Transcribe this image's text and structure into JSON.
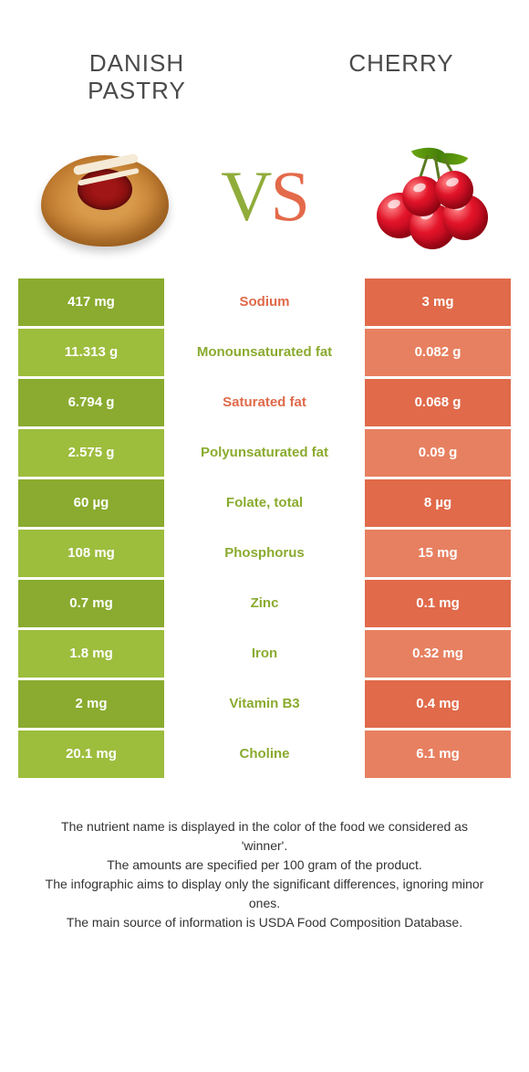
{
  "colors": {
    "green_dark": "#8aab2f",
    "green_light": "#9dbd3d",
    "orange_dark": "#e06a4a",
    "orange_light": "#e78060",
    "text_green": "#8aab2f",
    "text_orange": "#e06a4a"
  },
  "header": {
    "left_title": "DANISH PASTRY",
    "right_title": "CHERRY"
  },
  "vs": {
    "v": "V",
    "s": "S"
  },
  "rows": [
    {
      "left": "417 mg",
      "label": "Sodium",
      "right": "3 mg",
      "winner": "orange"
    },
    {
      "left": "11.313 g",
      "label": "Monounsaturated fat",
      "right": "0.082 g",
      "winner": "green"
    },
    {
      "left": "6.794 g",
      "label": "Saturated fat",
      "right": "0.068 g",
      "winner": "orange"
    },
    {
      "left": "2.575 g",
      "label": "Polyunsaturated fat",
      "right": "0.09 g",
      "winner": "green"
    },
    {
      "left": "60 µg",
      "label": "Folate, total",
      "right": "8 µg",
      "winner": "green"
    },
    {
      "left": "108 mg",
      "label": "Phosphorus",
      "right": "15 mg",
      "winner": "green"
    },
    {
      "left": "0.7 mg",
      "label": "Zinc",
      "right": "0.1 mg",
      "winner": "green"
    },
    {
      "left": "1.8 mg",
      "label": "Iron",
      "right": "0.32 mg",
      "winner": "green"
    },
    {
      "left": "2 mg",
      "label": "Vitamin B3",
      "right": "0.4 mg",
      "winner": "green"
    },
    {
      "left": "20.1 mg",
      "label": "Choline",
      "right": "6.1 mg",
      "winner": "green"
    }
  ],
  "notes": {
    "line1": "The nutrient name is displayed in the color of the food we considered as 'winner'.",
    "line2": "The amounts are specified per 100 gram of the product.",
    "line3": "The infographic aims to display only the significant differences, ignoring minor ones.",
    "line4": "The main source of information is USDA Food Composition Database."
  }
}
